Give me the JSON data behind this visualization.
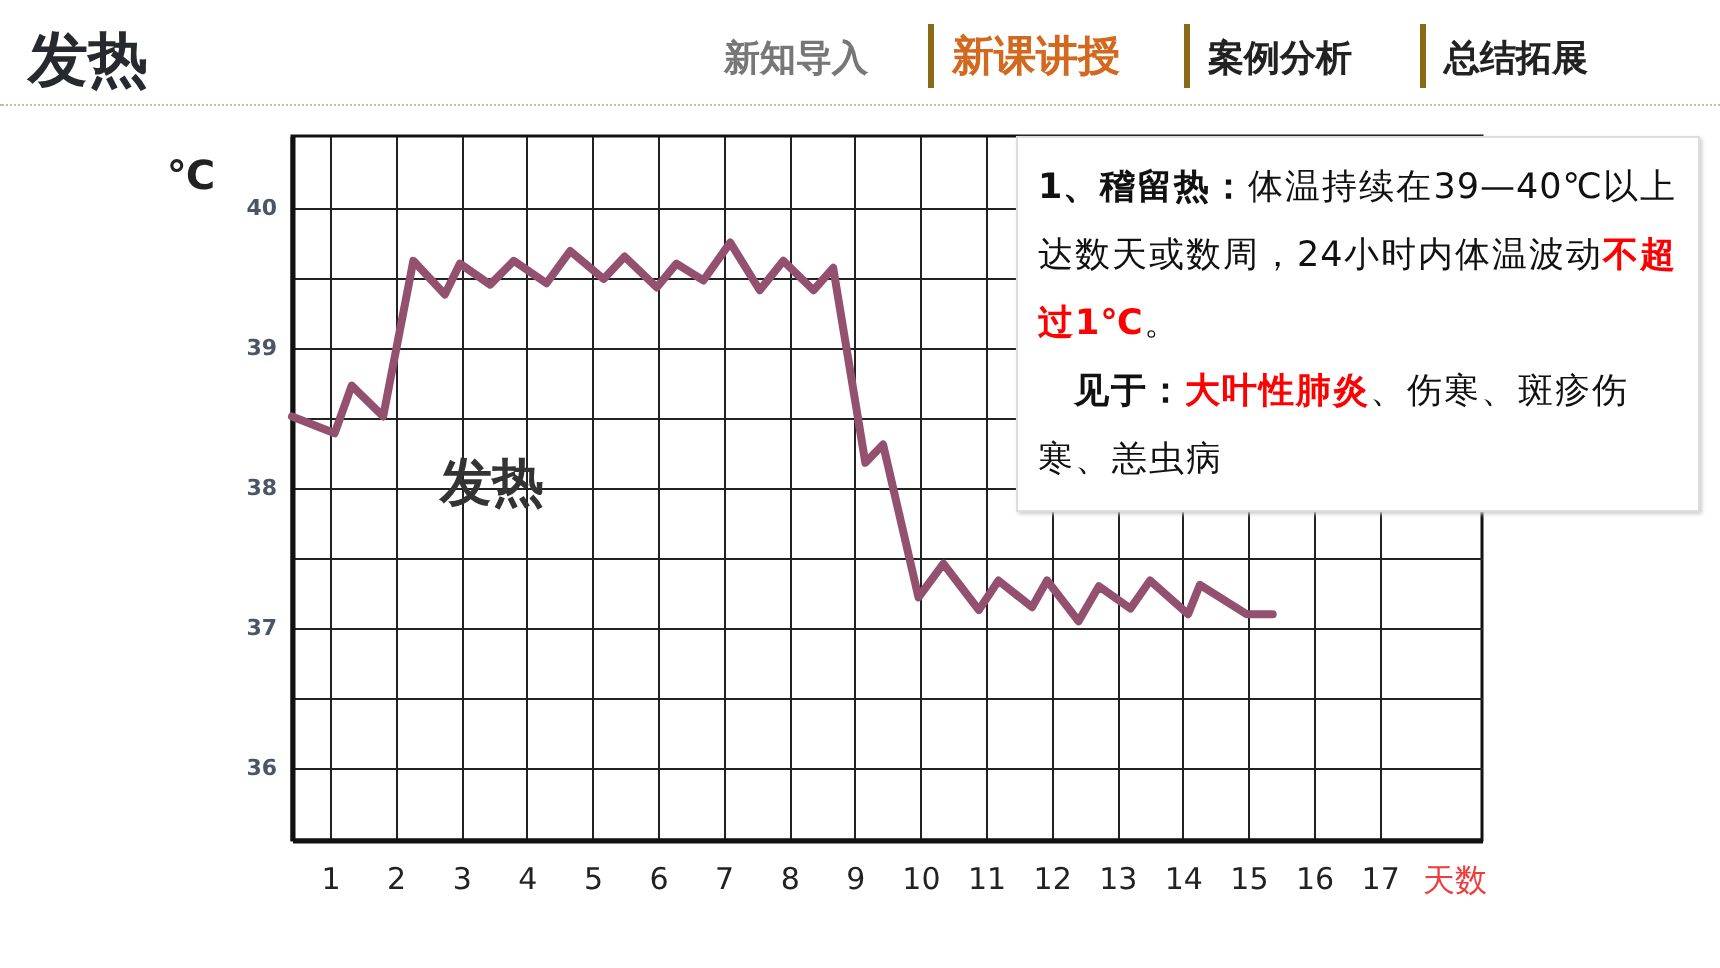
{
  "chart_data": {
    "type": "line",
    "title": "发热",
    "xlabel": "天数",
    "ylabel": "℃",
    "x": [
      0.42,
      1.07,
      1.33,
      1.81,
      2.27,
      2.75,
      2.98,
      3.44,
      3.8,
      4.3,
      4.66,
      5.17,
      5.49,
      5.98,
      6.28,
      6.69,
      7.1,
      7.55,
      7.91,
      8.37,
      8.67,
      9.16,
      9.43,
      9.97,
      10.35,
      10.89,
      11.19,
      11.7,
      11.93,
      12.41,
      12.72,
      13.2,
      13.5,
      14.08,
      14.26,
      14.97,
      15.37
    ],
    "values": [
      38.51,
      38.39,
      38.73,
      38.51,
      39.62,
      39.38,
      39.6,
      39.45,
      39.62,
      39.46,
      39.69,
      39.49,
      39.65,
      39.43,
      39.6,
      39.48,
      39.75,
      39.41,
      39.62,
      39.41,
      39.57,
      38.18,
      38.31,
      37.22,
      37.46,
      37.13,
      37.34,
      37.15,
      37.34,
      37.05,
      37.3,
      37.14,
      37.34,
      37.1,
      37.31,
      37.1,
      37.1
    ],
    "color": "#93506f",
    "xlim": [
      0.42,
      18.56
    ],
    "ylim": [
      35.49,
      40.51
    ],
    "xticks": [
      1,
      2,
      3,
      4,
      5,
      6,
      7,
      8,
      9,
      10,
      11,
      12,
      13,
      14,
      15,
      16,
      17
    ],
    "yticks": [
      36,
      {
        "value": 36.5,
        "label": null
      },
      37,
      {
        "value": 37.5,
        "label": null
      },
      38,
      {
        "value": 38.5,
        "label": null
      },
      39,
      {
        "value": 39.5,
        "label": null
      },
      40
    ],
    "grid": true,
    "annotations": [
      "新知导入",
      "新课讲授",
      "案例分析",
      "总结拓展",
      "发热",
      "1、稽留热：",
      "体温持续在39—40℃以上达数天或数周，24小时内体温波动",
      "不超过1℃",
      "。",
      "见于：",
      "大叶性肺炎",
      "、伤寒、斑疹伤寒、恙虫病"
    ]
  }
}
